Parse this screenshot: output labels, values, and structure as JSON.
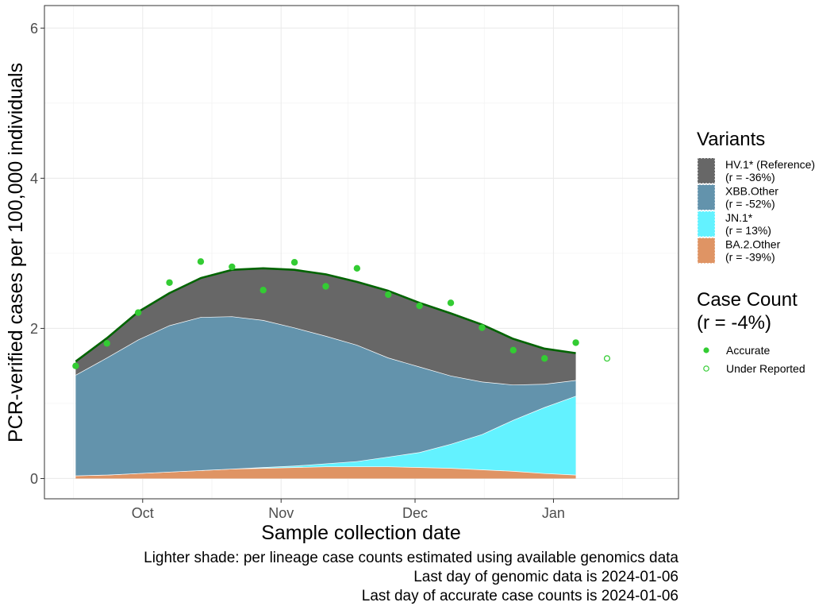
{
  "chart_data": {
    "type": "area",
    "xlabel": "Sample collection date",
    "ylabel": "PCR-verified cases per 100,000 individuals",
    "x_ticks": [
      {
        "date": "2023-10-01",
        "label": "Oct"
      },
      {
        "date": "2023-11-01",
        "label": "Nov"
      },
      {
        "date": "2023-12-01",
        "label": "Dec"
      },
      {
        "date": "2024-01-01",
        "label": "Jan"
      }
    ],
    "y_ticks": [
      0,
      2,
      4,
      6
    ],
    "xlim": [
      "2023-09-09",
      "2024-01-29"
    ],
    "ylim": [
      -0.27,
      6.3
    ],
    "grid": true,
    "legend_position": "right",
    "x": [
      "2023-09-16",
      "2023-09-23",
      "2023-09-30",
      "2023-10-07",
      "2023-10-14",
      "2023-10-21",
      "2023-10-28",
      "2023-11-04",
      "2023-11-11",
      "2023-11-18",
      "2023-11-25",
      "2023-12-02",
      "2023-12-09",
      "2023-12-16",
      "2023-12-23",
      "2023-12-30",
      "2024-01-06"
    ],
    "series": [
      {
        "name": "BA.2.Other",
        "label_r": "(r = -39%)",
        "color": "#E08D58",
        "fill": "#DF9464",
        "values": [
          0.04,
          0.05,
          0.07,
          0.09,
          0.11,
          0.13,
          0.14,
          0.15,
          0.16,
          0.16,
          0.16,
          0.15,
          0.14,
          0.12,
          0.1,
          0.07,
          0.05
        ]
      },
      {
        "name": "JN.1*",
        "label_r": "(r = 13%)",
        "color": "#40EEFF",
        "fill": "#63F2FF",
        "values": [
          0.0,
          0.0,
          0.0,
          0.0,
          0.0,
          0.0,
          0.01,
          0.02,
          0.04,
          0.07,
          0.13,
          0.2,
          0.32,
          0.47,
          0.68,
          0.88,
          1.05
        ]
      },
      {
        "name": "XBB.Other",
        "label_r": "(r = -52%)",
        "color": "#4A7A9C",
        "fill": "#6393AC",
        "values": [
          1.34,
          1.56,
          1.78,
          1.95,
          2.04,
          2.03,
          1.96,
          1.84,
          1.7,
          1.55,
          1.32,
          1.14,
          0.91,
          0.7,
          0.47,
          0.31,
          0.21
        ]
      },
      {
        "name": "HV.1* (Reference)",
        "label_r": "(r = -36%)",
        "color": "#464646",
        "fill": "#676767",
        "values": [
          0.18,
          0.26,
          0.37,
          0.43,
          0.52,
          0.62,
          0.69,
          0.77,
          0.82,
          0.84,
          0.89,
          0.85,
          0.83,
          0.76,
          0.61,
          0.47,
          0.36
        ]
      }
    ],
    "total_line": {
      "color": "#006400",
      "values": [
        1.56,
        1.87,
        2.22,
        2.47,
        2.67,
        2.78,
        2.8,
        2.78,
        2.72,
        2.62,
        2.5,
        2.34,
        2.2,
        2.05,
        1.86,
        1.73,
        1.67
      ]
    },
    "case_count": {
      "legend_title": "Case Count",
      "legend_subtitle": "(r = -4%)",
      "point_color": "#33CC33",
      "accurate_label": "Accurate",
      "under_reported_label": "Under Reported",
      "accurate": [
        {
          "date": "2023-09-16",
          "value": 1.5
        },
        {
          "date": "2023-09-23",
          "value": 1.8
        },
        {
          "date": "2023-09-30",
          "value": 2.21
        },
        {
          "date": "2023-10-07",
          "value": 2.61
        },
        {
          "date": "2023-10-14",
          "value": 2.89
        },
        {
          "date": "2023-10-21",
          "value": 2.82
        },
        {
          "date": "2023-10-28",
          "value": 2.51
        },
        {
          "date": "2023-11-04",
          "value": 2.88
        },
        {
          "date": "2023-11-11",
          "value": 2.56
        },
        {
          "date": "2023-11-18",
          "value": 2.8
        },
        {
          "date": "2023-11-25",
          "value": 2.45
        },
        {
          "date": "2023-12-02",
          "value": 2.3
        },
        {
          "date": "2023-12-09",
          "value": 2.34
        },
        {
          "date": "2023-12-16",
          "value": 2.01
        },
        {
          "date": "2023-12-23",
          "value": 1.71
        },
        {
          "date": "2023-12-30",
          "value": 1.6
        },
        {
          "date": "2024-01-06",
          "value": 1.81
        }
      ],
      "under_reported": [
        {
          "date": "2024-01-13",
          "value": 1.6
        }
      ]
    },
    "legend_title": "Variants"
  },
  "caption": {
    "line1": "Lighter shade: per lineage case counts estimated using available genomics data",
    "line2": "Last day of genomic data is 2024-01-06",
    "line3": "Last day of accurate case counts is 2024-01-06"
  }
}
